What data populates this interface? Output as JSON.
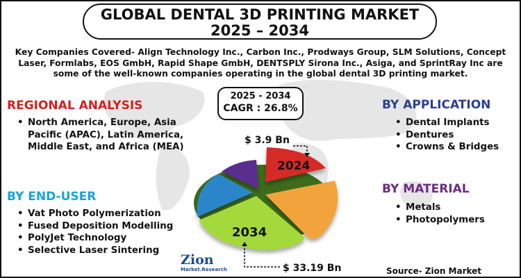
{
  "title": {
    "line1": "GLOBAL DENTAL 3D PRINTING MARKET",
    "line2": "2025 – 2034"
  },
  "intro_text": "Key Companies Covered- Align Technology Inc., Carbon Inc., Prodways Group, SLM Solutions, Concept Laser, Formlabs, EOS GmbH, Rapid Shape GmbH, DENTSPLY Sirona Inc., Asiga, and SprintRay Inc are some of the well-known companies operating in the global dental 3D printing market.",
  "cagr": {
    "years": "2025 - 2034",
    "rate": "CAGR : 26.8%"
  },
  "regional": {
    "heading": "REGIONAL ANALYSIS",
    "items": [
      "North America, Europe, Asia Pacific (APAC), Latin America, Middle East, and Africa (MEA)"
    ]
  },
  "end_user": {
    "heading": "BY END-USER",
    "items": [
      "Vat Photo Polymerization",
      "Fused Deposition Modelling",
      "PolyJet Technology",
      "Selective Laser Sintering"
    ]
  },
  "application": {
    "heading": "BY APPLICATION",
    "items": [
      "Dental Implants",
      "Dentures",
      "Crowns & Bridges"
    ]
  },
  "material": {
    "heading": "BY MATERIAL",
    "items": [
      "Metals",
      "Photopolymers"
    ]
  },
  "pie": {
    "label_2024": "2024",
    "label_2034": "2034",
    "value_2024": "$ 3.9 Bn",
    "value_2034": "$ 33.19 Bn"
  },
  "source": "Source- Zion Market Research",
  "logo": {
    "name": "Zion",
    "sub": "Market.Research"
  },
  "colors": {
    "regional_heading": "#d61f1f",
    "end_user_heading": "#1aa3d9",
    "application_heading": "#2b3f8f",
    "material_heading": "#6a2c83",
    "slice_red": "#d62a26",
    "slice_orange": "#f2a33a",
    "slice_green": "#a3d93a",
    "slice_blue": "#2b86c8",
    "slice_purple": "#5a2d8c"
  }
}
